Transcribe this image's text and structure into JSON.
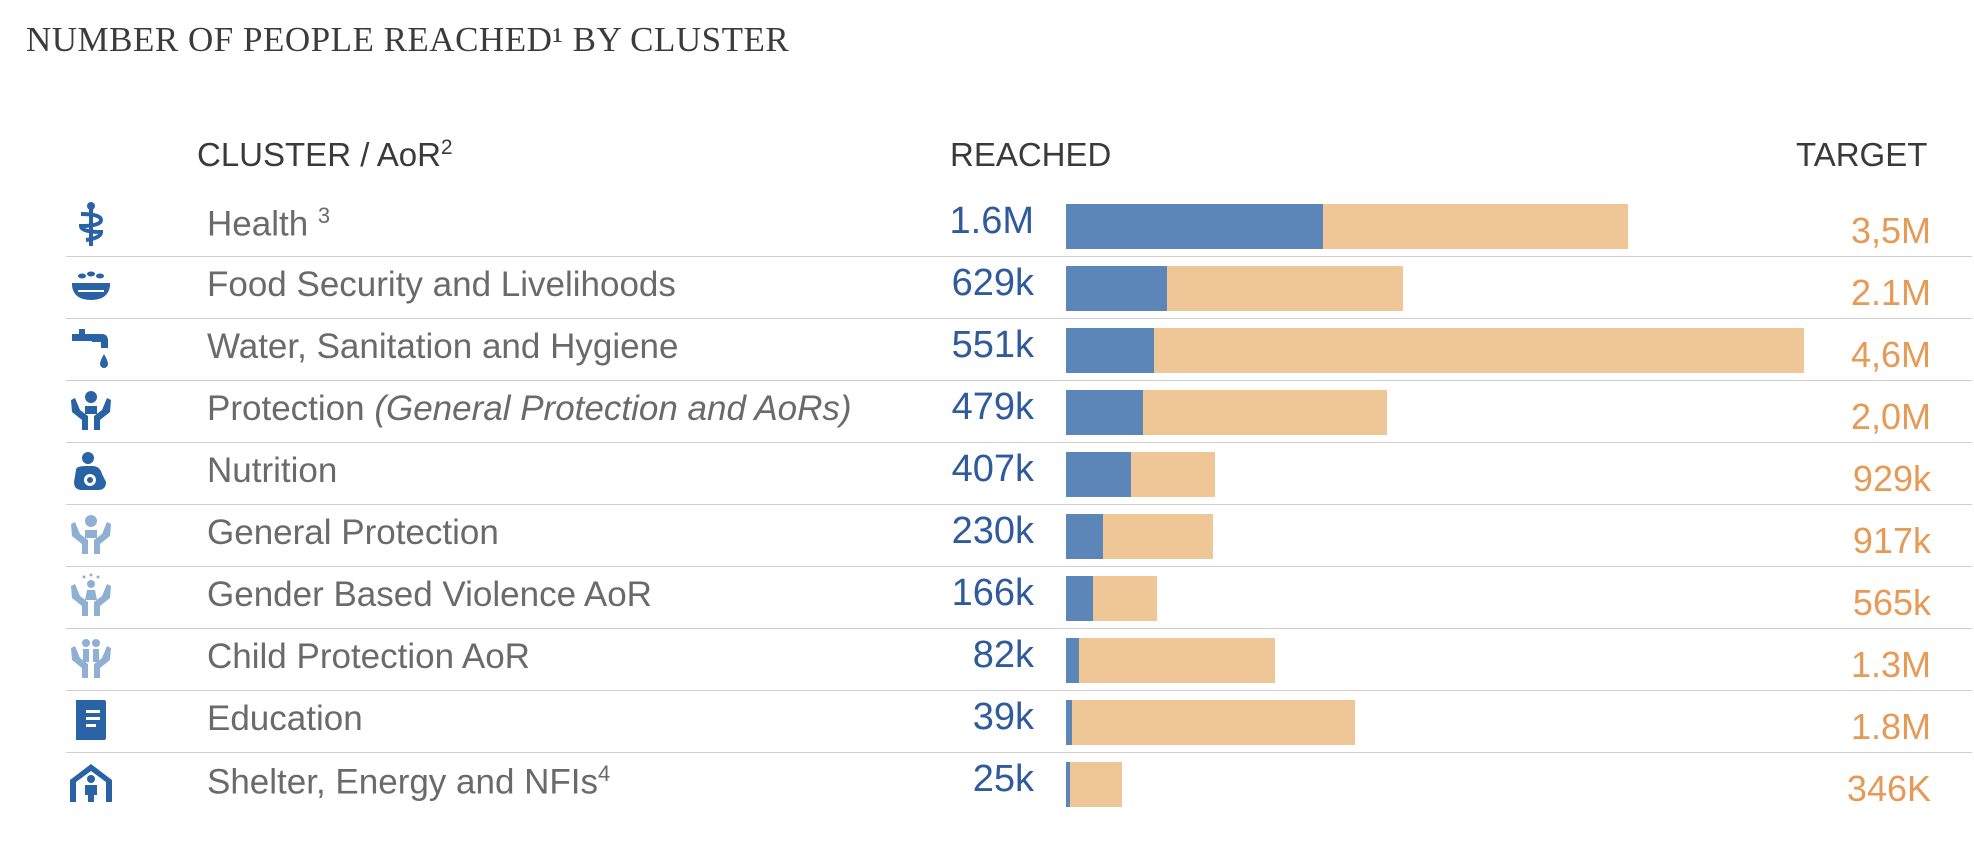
{
  "title": "NUMBER OF PEOPLE REACHED¹ BY CLUSTER",
  "headers": {
    "cluster": "CLUSTER / AoR",
    "cluster_sup": "2",
    "reached": "REACHED",
    "target": "TARGET"
  },
  "colors": {
    "reached_bar": "#5d86b8",
    "target_bar": "#efc695",
    "reached_text": "#2f5a9c",
    "target_text": "#e69a56",
    "icon_dark": "#2a62a6",
    "icon_light": "#8fb0d3"
  },
  "chart_data": {
    "type": "bar",
    "orientation": "horizontal",
    "stacked": "overlay",
    "title": "NUMBER OF PEOPLE REACHED¹ BY CLUSTER",
    "xlim": [
      0,
      4600000
    ],
    "grid": false,
    "categories": [
      "Health",
      "Food Security and Livelihoods",
      "Water, Sanitation and Hygiene",
      "Protection (General Protection and AoRs)",
      "Nutrition",
      "General Protection",
      "Gender Based Violence AoR",
      "Child Protection AoR",
      "Education",
      "Shelter, Energy and NFIs"
    ],
    "series": [
      {
        "name": "REACHED",
        "values": [
          1600000,
          629000,
          551000,
          479000,
          407000,
          230000,
          166000,
          82000,
          39000,
          25000
        ]
      },
      {
        "name": "TARGET",
        "values": [
          3500000,
          2100000,
          4600000,
          2000000,
          929000,
          917000,
          565000,
          1300000,
          1800000,
          346000
        ]
      }
    ],
    "rows": [
      {
        "icon": "health-icon",
        "tone": "dark",
        "label": "Health ",
        "sup": "3",
        "italic": "",
        "reached_label": "1.6M",
        "target_label": "3,5M",
        "reached": 1600000,
        "target": 3500000
      },
      {
        "icon": "food-security-icon",
        "tone": "dark",
        "label": "Food Security and Livelihoods",
        "sup": "",
        "italic": "",
        "reached_label": "629k",
        "target_label": "2.1M",
        "reached": 629000,
        "target": 2100000
      },
      {
        "icon": "water-tap-icon",
        "tone": "dark",
        "label": "Water, Sanitation and Hygiene",
        "sup": "",
        "italic": "",
        "reached_label": "551k",
        "target_label": "4,6M",
        "reached": 551000,
        "target": 4600000
      },
      {
        "icon": "protection-hands-icon",
        "tone": "dark",
        "label": "Protection ",
        "sup": "",
        "italic": "(General Protection and AoRs)",
        "reached_label": "479k",
        "target_label": "2,0M",
        "reached": 479000,
        "target": 2000000
      },
      {
        "icon": "nutrition-icon",
        "tone": "dark",
        "label": "Nutrition",
        "sup": "",
        "italic": "",
        "reached_label": "407k",
        "target_label": "929k",
        "reached": 407000,
        "target": 929000
      },
      {
        "icon": "general-protection-icon",
        "tone": "light",
        "label": "General Protection",
        "sup": "",
        "italic": "",
        "reached_label": "230k",
        "target_label": "917k",
        "reached": 230000,
        "target": 917000
      },
      {
        "icon": "gbv-icon",
        "tone": "light",
        "label": "Gender Based Violence AoR",
        "sup": "",
        "italic": "",
        "reached_label": "166k",
        "target_label": "565k",
        "reached": 166000,
        "target": 565000
      },
      {
        "icon": "child-protection-icon",
        "tone": "light",
        "label": "Child Protection AoR",
        "sup": "",
        "italic": "",
        "reached_label": "82k",
        "target_label": "1.3M",
        "reached": 82000,
        "target": 1300000
      },
      {
        "icon": "education-book-icon",
        "tone": "dark",
        "label": "Education",
        "sup": "",
        "italic": "",
        "reached_label": "39k",
        "target_label": "1.8M",
        "reached": 39000,
        "target": 1800000
      },
      {
        "icon": "shelter-icon",
        "tone": "dark",
        "label": "Shelter, Energy and NFIs",
        "sup": "4",
        "italic": "",
        "reached_label": "25k",
        "target_label": "346K",
        "reached": 25000,
        "target": 346000
      }
    ]
  }
}
